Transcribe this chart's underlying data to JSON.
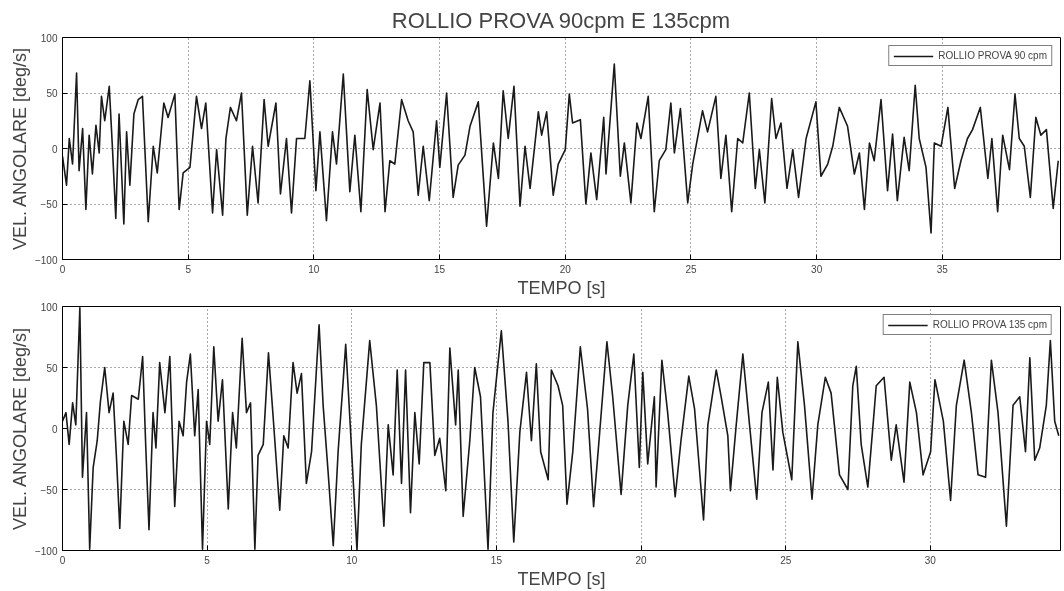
{
  "chart_data": [
    {
      "type": "line",
      "title": "ROLLIO PROVA 90cpm E 135cpm",
      "xlabel": "TEMPO [s]",
      "ylabel": "VEL. ANGOLARE [deg/s]",
      "xlim": [
        0,
        39.7
      ],
      "ylim": [
        -100,
        100
      ],
      "xticks": [
        0,
        5,
        10,
        15,
        20,
        25,
        30,
        35
      ],
      "yticks": [
        -100,
        -50,
        0,
        50,
        100
      ],
      "grid": true,
      "legend": "top right",
      "series": [
        {
          "name": "ROLLIO PROVA 90 cpm",
          "color": "#1a1a1a",
          "x": [
            0,
            0.16,
            0.27,
            0.4,
            0.56,
            0.66,
            0.8,
            0.93,
            1.06,
            1.19,
            1.33,
            1.46,
            1.55,
            1.68,
            1.86,
            1.99,
            2.12,
            2.25,
            2.44,
            2.55,
            2.68,
            2.84,
            3.01,
            3.18,
            3.41,
            3.61,
            3.77,
            4.03,
            4.2,
            4.47,
            4.64,
            4.8,
            5.07,
            5.33,
            5.53,
            5.7,
            5.97,
            6.13,
            6.37,
            6.5,
            6.68,
            6.92,
            7.12,
            7.35,
            7.56,
            7.78,
            8.02,
            8.18,
            8.49,
            8.67,
            8.91,
            9.11,
            9.31,
            9.64,
            9.84,
            10.08,
            10.24,
            10.5,
            10.74,
            10.9,
            11.17,
            11.43,
            11.63,
            11.87,
            12.12,
            12.36,
            12.63,
            12.83,
            13.02,
            13.22,
            13.49,
            13.75,
            13.95,
            14.15,
            14.35,
            14.59,
            14.88,
            15.01,
            15.28,
            15.54,
            15.74,
            16.01,
            16.21,
            16.54,
            16.87,
            17.14,
            17.34,
            17.53,
            17.73,
            17.96,
            18.2,
            18.4,
            18.6,
            18.93,
            19.06,
            19.26,
            19.52,
            19.72,
            20.0,
            20.16,
            20.29,
            20.6,
            20.82,
            21.02,
            21.25,
            21.53,
            21.62,
            21.95,
            22.19,
            22.35,
            22.61,
            22.85,
            23.01,
            23.3,
            23.54,
            23.74,
            24.0,
            24.2,
            24.34,
            24.58,
            24.87,
            25.07,
            25.46,
            25.66,
            25.99,
            26.19,
            26.39,
            26.62,
            26.86,
            27.06,
            27.32,
            27.56,
            27.72,
            27.94,
            28.21,
            28.38,
            28.58,
            28.82,
            29.05,
            29.28,
            29.58,
            29.97,
            30.17,
            30.44,
            30.64,
            30.9,
            31.23,
            31.5,
            31.7,
            31.9,
            32.1,
            32.29,
            32.56,
            32.82,
            33.02,
            33.21,
            33.48,
            33.68,
            33.92,
            34.08,
            34.35,
            34.55,
            34.68,
            34.95,
            35.22,
            35.49,
            35.74,
            36.0,
            36.2,
            36.51,
            36.81,
            36.97,
            37.2,
            37.4,
            37.67,
            37.89,
            38.06,
            38.26,
            38.5,
            38.72,
            38.92,
            39.14,
            39.41,
            39.61
          ],
          "values": [
            -7,
            -33,
            9,
            -14,
            68,
            -20,
            18,
            -55,
            12,
            -23,
            21,
            -4,
            47,
            25,
            56,
            -1,
            -63,
            31,
            -68,
            15,
            -33,
            31,
            44,
            47,
            -66,
            2,
            -22,
            41,
            28,
            49,
            -55,
            -22,
            -17,
            47,
            18,
            41,
            -58,
            -1,
            -60,
            9,
            37,
            25,
            50,
            -60,
            2,
            -49,
            44,
            2,
            41,
            -41,
            9,
            -58,
            9,
            9,
            61,
            -38,
            15,
            -65,
            15,
            -14,
            67,
            -39,
            12,
            -57,
            53,
            -1,
            41,
            -57,
            -11,
            -14,
            44,
            25,
            15,
            -42,
            2,
            -47,
            25,
            -17,
            50,
            -44,
            -15,
            -6,
            20,
            42,
            -70,
            5,
            -27,
            52,
            9,
            56,
            -52,
            2,
            -36,
            33,
            12,
            33,
            -42,
            -14,
            -1,
            49,
            23,
            26,
            -50,
            -4,
            -46,
            28,
            -23,
            76,
            -25,
            5,
            -49,
            23,
            9,
            47,
            -57,
            -11,
            -1,
            41,
            -4,
            36,
            -49,
            -14,
            34,
            15,
            47,
            -27,
            12,
            -57,
            9,
            5,
            50,
            -36,
            -1,
            -49,
            45,
            9,
            23,
            -36,
            -1,
            -44,
            9,
            42,
            -25,
            -14,
            2,
            37,
            20,
            -23,
            -4,
            -55,
            5,
            -11,
            44,
            -38,
            13,
            -47,
            10,
            -20,
            57,
            9,
            -17,
            -76,
            5,
            2,
            37,
            -36,
            -11,
            9,
            17,
            37,
            -27,
            9,
            -57,
            12,
            -19,
            49,
            9,
            2,
            -44,
            28,
            12,
            17,
            -54,
            -11
          ]
        }
      ]
    },
    {
      "type": "line",
      "xlabel": "TEMPO [s]",
      "ylabel": "VEL. ANGOLARE [deg/s]",
      "xlim": [
        0,
        34.5
      ],
      "ylim": [
        -100,
        100
      ],
      "xticks": [
        0,
        5,
        10,
        15,
        20,
        25,
        30
      ],
      "yticks": [
        -100,
        -50,
        0,
        50,
        100
      ],
      "grid": true,
      "legend": "top right",
      "series": [
        {
          "name": "ROLLIO PROVA 135 cpm",
          "color": "#1a1a1a",
          "x": [
            0,
            0.12,
            0.23,
            0.35,
            0.46,
            0.6,
            0.69,
            0.83,
            0.94,
            1.06,
            1.2,
            1.31,
            1.46,
            1.61,
            1.75,
            1.87,
            1.98,
            2.12,
            2.27,
            2.39,
            2.62,
            2.77,
            2.88,
            2.99,
            3.13,
            3.23,
            3.36,
            3.54,
            3.71,
            3.88,
            4.03,
            4.17,
            4.29,
            4.42,
            4.57,
            4.69,
            4.84,
            4.98,
            5.09,
            5.23,
            5.38,
            5.53,
            5.73,
            5.88,
            6.01,
            6.21,
            6.36,
            6.5,
            6.65,
            6.76,
            6.94,
            7.12,
            7.28,
            7.51,
            7.65,
            7.8,
            7.97,
            8.11,
            8.26,
            8.43,
            8.61,
            8.87,
            9.01,
            9.18,
            9.36,
            9.53,
            9.7,
            9.79,
            9.93,
            10.18,
            10.33,
            10.62,
            10.85,
            11.11,
            11.26,
            11.43,
            11.57,
            11.72,
            11.86,
            12.03,
            12.18,
            12.33,
            12.49,
            12.7,
            12.87,
            13.04,
            13.25,
            13.39,
            13.59,
            13.68,
            13.85,
            14.08,
            14.25,
            14.45,
            14.71,
            14.88,
            15.17,
            15.4,
            15.6,
            15.81,
            16.04,
            16.21,
            16.38,
            16.53,
            16.79,
            16.9,
            17.13,
            17.29,
            17.44,
            17.64,
            17.9,
            18.15,
            18.36,
            18.56,
            18.82,
            19.02,
            19.31,
            19.54,
            19.75,
            19.94,
            20.06,
            20.23,
            20.46,
            20.52,
            20.72,
            20.92,
            21.18,
            21.38,
            21.65,
            21.85,
            22.16,
            22.31,
            22.6,
            22.77,
            23.0,
            23.09,
            23.29,
            23.52,
            23.75,
            24.0,
            24.18,
            24.4,
            24.56,
            24.71,
            24.9,
            25.21,
            25.42,
            25.65,
            25.91,
            26.11,
            26.37,
            26.57,
            26.86,
            27.15,
            27.32,
            27.44,
            27.61,
            27.84,
            28.02,
            28.13,
            28.4,
            28.65,
            28.82,
            29.09,
            29.29,
            29.52,
            29.75,
            30.01,
            30.16,
            30.45,
            30.7,
            30.9,
            31.17,
            31.42,
            31.65,
            31.91,
            32.11,
            32.34,
            32.63,
            32.86,
            33.09,
            33.29,
            33.44,
            33.61,
            33.78,
            34.01,
            34.15,
            34.3,
            34.44
          ],
          "values": [
            6,
            13,
            -13,
            21,
            3,
            99,
            -40,
            13,
            -99,
            -32,
            -10,
            22,
            50,
            13,
            29,
            -26,
            -82,
            6,
            -13,
            27,
            24,
            59,
            -16,
            -83,
            13,
            -16,
            54,
            13,
            59,
            -64,
            6,
            -6,
            38,
            61,
            -6,
            32,
            -99,
            6,
            -13,
            67,
            6,
            40,
            -66,
            13,
            -16,
            74,
            13,
            21,
            -99,
            -22,
            -13,
            62,
            10,
            -67,
            -6,
            -16,
            54,
            29,
            45,
            -45,
            -19,
            85,
            19,
            -35,
            -96,
            -18,
            38,
            69,
            10,
            -100,
            -13,
            72,
            19,
            -80,
            3,
            -38,
            48,
            -45,
            48,
            -69,
            13,
            -29,
            54,
            54,
            -22,
            -8,
            -51,
            66,
            3,
            48,
            -72,
            -10,
            50,
            26,
            -99,
            13,
            80,
            6,
            -93,
            -3,
            46,
            -10,
            53,
            -19,
            -42,
            48,
            35,
            19,
            -62,
            -19,
            67,
            16,
            -64,
            -6,
            71,
            26,
            -54,
            19,
            61,
            -32,
            46,
            -29,
            26,
            -48,
            56,
            13,
            -56,
            -10,
            43,
            16,
            -75,
            3,
            48,
            26,
            -6,
            -51,
            3,
            61,
            3,
            -58,
            13,
            38,
            -34,
            42,
            -3,
            -42,
            71,
            19,
            -58,
            3,
            42,
            29,
            -38,
            -50,
            35,
            51,
            -13,
            -48,
            3,
            35,
            42,
            -26,
            3,
            -44,
            38,
            13,
            -38,
            -19,
            40,
            6,
            -59,
            19,
            56,
            13,
            -38,
            -40,
            56,
            13,
            -80,
            19,
            26,
            -19,
            58,
            -26,
            -16,
            19,
            72,
            6,
            -6
          ]
        }
      ]
    }
  ]
}
